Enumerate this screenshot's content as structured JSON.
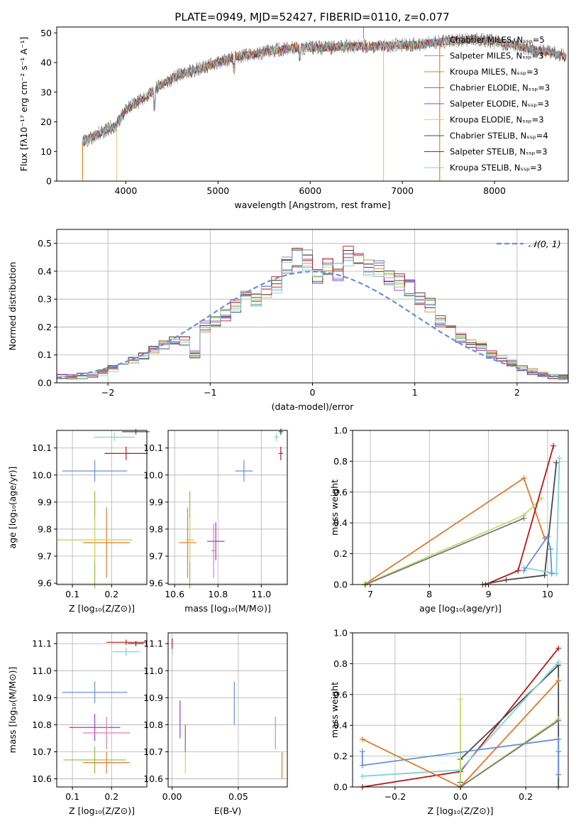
{
  "colors": {
    "Chabrier MILES": "#6b8fd6",
    "Salpeter MILES": "#9a9a9a",
    "Kroupa MILES": "#d98a1e",
    "Chabrier ELODIE": "#7a7a7a",
    "Salpeter ELODIE": "#9b3fc4",
    "Kroupa ELODIE": "#d6d65a",
    "Chabrier STELIB": "#4a4a4a",
    "Salpeter STELIB": "#b31b1b",
    "Kroupa STELIB": "#7fd3d8",
    "orange": "#e07a2e",
    "green": "#8fbf3f",
    "pink": "#e37ac0",
    "normal": "#6492d8",
    "lightgreen": "#bede6a"
  },
  "chart_data": [
    {
      "type": "line",
      "title": "PLATE=0949, MJD=52427, FIBERID=0110, z=0.077",
      "xlabel": "wavelength [Angstrom, rest frame]",
      "ylabel": "Flux [fλ10⁻¹⁷ erg cm⁻² s⁻¹ A⁻¹]",
      "xlim": [
        3250,
        8800
      ],
      "ylim": [
        0,
        52
      ],
      "xticks": [
        "4000",
        "5000",
        "6000",
        "7000",
        "8000"
      ],
      "yticks": [
        "0",
        "10",
        "20",
        "30",
        "40",
        "50"
      ],
      "legend_position": "right",
      "legend": [
        "Chabrier MILES, Nₛₛₚ=5",
        "Salpeter MILES, Nₛₛₚ=3",
        "Kroupa MILES, Nₛₛₚ=3",
        "Chabrier ELODIE, Nₛₛₚ=3",
        "Salpeter ELODIE, Nₛₛₚ=3",
        "Kroupa ELODIE, Nₛₛₚ=3",
        "Chabrier STELIB, Nₛₛₚ=4",
        "Salpeter STELIB, Nₛₛₚ=3",
        "Kroupa STELIB, Nₛₛₚ=3"
      ],
      "legend_series": [
        "Chabrier MILES",
        "Salpeter MILES",
        "Kroupa MILES",
        "Chabrier ELODIE",
        "Salpeter ELODIE",
        "Kroupa ELODIE",
        "Chabrier STELIB",
        "Salpeter STELIB",
        "Kroupa STELIB"
      ],
      "continuum": {
        "x": [
          3530,
          3700,
          3900,
          4000,
          4200,
          4400,
          4600,
          4800,
          5000,
          5200,
          5400,
          5600,
          5800,
          6000,
          6200,
          6400,
          6600,
          6800,
          7000,
          7200,
          7400,
          7600,
          7800,
          8000,
          8200,
          8400,
          8600,
          8780
        ],
        "y": [
          13,
          16,
          19,
          24,
          28,
          33,
          36,
          38,
          40,
          42,
          43,
          44,
          45,
          45,
          45,
          45.5,
          45.5,
          45.5,
          46,
          46,
          47,
          47.5,
          48,
          47,
          46,
          44.5,
          43.5,
          42
        ]
      }
    },
    {
      "type": "bar",
      "xlabel": "(data-model)/error",
      "ylabel": "Normed distribution",
      "xlim": [
        -2.5,
        2.5
      ],
      "ylim": [
        0,
        0.55
      ],
      "xticks": [
        "−2",
        "−1",
        "0",
        "1",
        "2"
      ],
      "yticks": [
        "0.0",
        "0.1",
        "0.2",
        "0.3",
        "0.4",
        "0.5"
      ],
      "legend": "𝒩(0, 1)",
      "legend_position": "top-right",
      "bin_edges_start": -2.5,
      "bin_width": 0.1,
      "histogram": [
        0.02,
        0.02,
        0.025,
        0.03,
        0.035,
        0.05,
        0.06,
        0.08,
        0.1,
        0.12,
        0.135,
        0.155,
        0.15,
        0.1,
        0.2,
        0.22,
        0.24,
        0.28,
        0.305,
        0.3,
        0.33,
        0.35,
        0.42,
        0.45,
        0.44,
        0.38,
        0.41,
        0.4,
        0.45,
        0.44,
        0.41,
        0.41,
        0.38,
        0.36,
        0.34,
        0.3,
        0.28,
        0.22,
        0.2,
        0.16,
        0.14,
        0.13,
        0.1,
        0.09,
        0.07,
        0.05,
        0.04,
        0.03,
        0.025,
        0.02
      ],
      "series_offsets": [
        0,
        0.03,
        -0.02,
        0.04,
        -0.03,
        0.02,
        -0.04,
        0.05,
        -0.01
      ]
    },
    {
      "type": "scatter",
      "xlabel": "Z [log₁₀(Z/Z⊙)]",
      "ylabel": "age  [log₁₀(age/yr)]",
      "xlim": [
        0.06,
        0.29
      ],
      "ylim": [
        9.595,
        10.165
      ],
      "xticks": [
        "0.1",
        "0.2"
      ],
      "yticks": [
        "9.6",
        "9.7",
        "9.8",
        "9.9",
        "10.0",
        "10.1"
      ],
      "points": [
        {
          "color": "Chabrier MILES",
          "x": 0.157,
          "y": 10.015,
          "xerr": 0.083,
          "yerr": 0.04
        },
        {
          "color": "Kroupa STELIB",
          "x": 0.207,
          "y": 10.14,
          "xerr": 0.052,
          "yerr": 0.015
        },
        {
          "color": "Chabrier STELIB",
          "x": 0.262,
          "y": 10.16,
          "xerr": 0.035,
          "yerr": 0.01
        },
        {
          "color": "Salpeter STELIB",
          "x": 0.237,
          "y": 10.08,
          "xerr": 0.055,
          "yerr": 0.025
        },
        {
          "color": "green",
          "x": 0.157,
          "y": 9.76,
          "xerr": 0.095,
          "yerr": 0.18
        },
        {
          "color": "orange",
          "x": 0.187,
          "y": 9.75,
          "xerr": 0.06,
          "yerr": 0.13
        },
        {
          "color": "Kroupa ELODIE",
          "x": 0.157,
          "y": 9.76,
          "xerr": 0.09,
          "yerr": 0.08
        }
      ]
    },
    {
      "type": "scatter",
      "xlabel": "mass [log₁₀(M/M⊙)]",
      "ylabel": "",
      "xlim": [
        10.57,
        11.12
      ],
      "ylim": [
        9.595,
        10.165
      ],
      "xticks": [
        "10.6",
        "10.8",
        "11.0"
      ],
      "yticks": [
        "9.6",
        "9.7",
        "9.8",
        "9.9",
        "10.0",
        "10.1"
      ],
      "points": [
        {
          "color": "Chabrier MILES",
          "x": 10.92,
          "y": 10.015,
          "xerr": 0.04,
          "yerr": 0.04
        },
        {
          "color": "Kroupa STELIB",
          "x": 11.07,
          "y": 10.14,
          "xerr": 0.01,
          "yerr": 0.015
        },
        {
          "color": "Chabrier STELIB",
          "x": 11.09,
          "y": 10.16,
          "xerr": 0.01,
          "yerr": 0.012
        },
        {
          "color": "Salpeter STELIB",
          "x": 11.09,
          "y": 10.08,
          "xerr": 0.01,
          "yerr": 0.025
        },
        {
          "color": "green",
          "x": 10.67,
          "y": 9.76,
          "xerr": 0.02,
          "yerr": 0.18
        },
        {
          "color": "orange",
          "x": 10.66,
          "y": 9.75,
          "xerr": 0.04,
          "yerr": 0.13
        },
        {
          "color": "Salpeter ELODIE",
          "x": 10.79,
          "y": 9.755,
          "xerr": 0.04,
          "yerr": 0.07
        },
        {
          "color": "pink",
          "x": 10.78,
          "y": 9.72,
          "xerr": 0.01,
          "yerr": 0.1
        },
        {
          "color": "Kroupa ELODIE",
          "x": 10.67,
          "y": 9.76,
          "xerr": 0.02,
          "yerr": 0.08
        }
      ]
    },
    {
      "type": "line",
      "xlabel": "age  [log₁₀(age/yr)]",
      "ylabel": "mass weight",
      "xlim": [
        6.7,
        10.35
      ],
      "ylim": [
        0,
        1
      ],
      "xticks": [
        "7",
        "8",
        "9",
        "10"
      ],
      "yticks": [
        "0.0",
        "0.2",
        "0.4",
        "0.6",
        "0.8",
        "1.0"
      ],
      "series": [
        {
          "color": "orange",
          "x": [
            6.9,
            9.6,
            9.95
          ],
          "y": [
            0.0,
            0.69,
            0.3
          ]
        },
        {
          "color": "lightgreen",
          "x": [
            6.9,
            9.6,
            9.9
          ],
          "y": [
            0.0,
            0.45,
            0.56
          ]
        },
        {
          "color": "Chabrier ELODIE",
          "x": [
            6.92,
            9.6
          ],
          "y": [
            0.0,
            0.43
          ]
        },
        {
          "color": "Salpeter STELIB",
          "x": [
            8.95,
            9.5,
            10.1
          ],
          "y": [
            0.0,
            0.09,
            0.9
          ]
        },
        {
          "color": "Chabrier STELIB",
          "x": [
            8.9,
            9.3,
            9.95,
            10.15
          ],
          "y": [
            0.0,
            0.03,
            0.06,
            0.79
          ]
        },
        {
          "color": "Kroupa STELIB",
          "x": [
            9.6,
            10.15,
            10.2
          ],
          "y": [
            0.11,
            0.07,
            0.82
          ]
        },
        {
          "color": "normal",
          "x": [
            9.6,
            10.0,
            10.05,
            10.07
          ],
          "y": [
            0.09,
            0.31,
            0.23,
            0.07
          ]
        }
      ]
    },
    {
      "type": "scatter",
      "xlabel": "Z [log₁₀(Z/Z⊙)]",
      "ylabel": "mass [log₁₀(M/M⊙)]",
      "xlim": [
        0.06,
        0.29
      ],
      "ylim": [
        10.57,
        11.14
      ],
      "xticks": [
        "0.1",
        "0.2"
      ],
      "yticks": [
        "10.6",
        "10.7",
        "10.8",
        "10.9",
        "11.0",
        "11.1"
      ],
      "points": [
        {
          "color": "Chabrier MILES",
          "x": 0.157,
          "y": 10.92,
          "xerr": 0.083,
          "yerr": 0.04
        },
        {
          "color": "Kroupa STELIB",
          "x": 0.237,
          "y": 11.07,
          "xerr": 0.035,
          "yerr": 0.015
        },
        {
          "color": "Chabrier STELIB",
          "x": 0.262,
          "y": 11.1,
          "xerr": 0.02,
          "yerr": 0.01
        },
        {
          "color": "Salpeter STELIB",
          "x": 0.237,
          "y": 11.105,
          "xerr": 0.05,
          "yerr": 0.01
        },
        {
          "color": "Salpeter ELODIE",
          "x": 0.157,
          "y": 10.79,
          "xerr": 0.065,
          "yerr": 0.05
        },
        {
          "color": "pink",
          "x": 0.187,
          "y": 10.77,
          "xerr": 0.06,
          "yerr": 0.06
        },
        {
          "color": "green",
          "x": 0.157,
          "y": 10.67,
          "xerr": 0.08,
          "yerr": 0.05
        },
        {
          "color": "orange",
          "x": 0.187,
          "y": 10.66,
          "xerr": 0.06,
          "yerr": 0.04
        }
      ]
    },
    {
      "type": "scatter",
      "xlabel": "E(B-V)",
      "ylabel": "",
      "xlim": [
        -0.003,
        0.087
      ],
      "ylim": [
        10.57,
        11.14
      ],
      "xticks": [
        "0.00",
        "0.05"
      ],
      "yticks": [
        "10.6",
        "10.7",
        "10.8",
        "10.9",
        "11.0",
        "11.1"
      ],
      "points": [
        {
          "color": "Salpeter STELIB",
          "x": 0.0,
          "y": 11.1,
          "xerr": 0,
          "yerr": 0.02
        },
        {
          "color": "Kroupa STELIB",
          "x": 0.0,
          "y": 11.07,
          "xerr": 0,
          "yerr": 0.01
        },
        {
          "color": "Salpeter ELODIE",
          "x": 0.006,
          "y": 10.82,
          "xerr": 0,
          "yerr": 0.07
        },
        {
          "color": "Kroupa ELODIE",
          "x": 0.01,
          "y": 10.71,
          "xerr": 0,
          "yerr": 0.09
        },
        {
          "color": "Chabrier ELODIE",
          "x": 0.01,
          "y": 10.75,
          "xerr": 0,
          "yerr": 0.05
        },
        {
          "color": "Chabrier MILES",
          "x": 0.047,
          "y": 10.88,
          "xerr": 0,
          "yerr": 0.08
        },
        {
          "color": "pink",
          "x": 0.078,
          "y": 10.77,
          "xerr": 0,
          "yerr": 0.06
        },
        {
          "color": "orange",
          "x": 0.083,
          "y": 10.65,
          "xerr": 0,
          "yerr": 0.05
        }
      ]
    },
    {
      "type": "line",
      "xlabel": "Z [log₁₀(Z/Z⊙)]",
      "ylabel": "mass weight",
      "xlim": [
        -0.33,
        0.33
      ],
      "ylim": [
        0,
        1
      ],
      "xticks": [
        "−0.2",
        "0.0",
        "0.2"
      ],
      "yticks": [
        "0.0",
        "0.2",
        "0.4",
        "0.6",
        "0.8",
        "1.0"
      ],
      "series": [
        {
          "color": "Salpeter STELIB",
          "x": [
            -0.3,
            0.0,
            0.3
          ],
          "y": [
            0.0,
            0.1,
            0.9
          ]
        },
        {
          "color": "Chabrier STELIB",
          "x": [
            0.0,
            0.0,
            0.3,
            0.3
          ],
          "y": [
            0.03,
            0.18,
            0.79,
            0.0
          ]
        },
        {
          "color": "Kroupa STELIB",
          "x": [
            -0.3,
            0.0,
            0.3
          ],
          "y": [
            0.07,
            0.11,
            0.81
          ]
        },
        {
          "color": "orange",
          "x": [
            -0.3,
            0.0,
            0.3
          ],
          "y": [
            0.31,
            0.0,
            0.69
          ]
        },
        {
          "color": "lightgreen",
          "x": [
            0.0,
            0.0,
            0.3
          ],
          "y": [
            0.57,
            0.0,
            0.44
          ]
        },
        {
          "color": "Chabrier ELODIE",
          "x": [
            0.0,
            0.3
          ],
          "y": [
            0.0,
            0.43
          ]
        },
        {
          "color": "normal",
          "x": [
            -0.3,
            -0.3,
            0.3,
            0.3,
            0.3
          ],
          "y": [
            0.23,
            0.14,
            0.31,
            0.23,
            0.08
          ]
        }
      ]
    }
  ]
}
